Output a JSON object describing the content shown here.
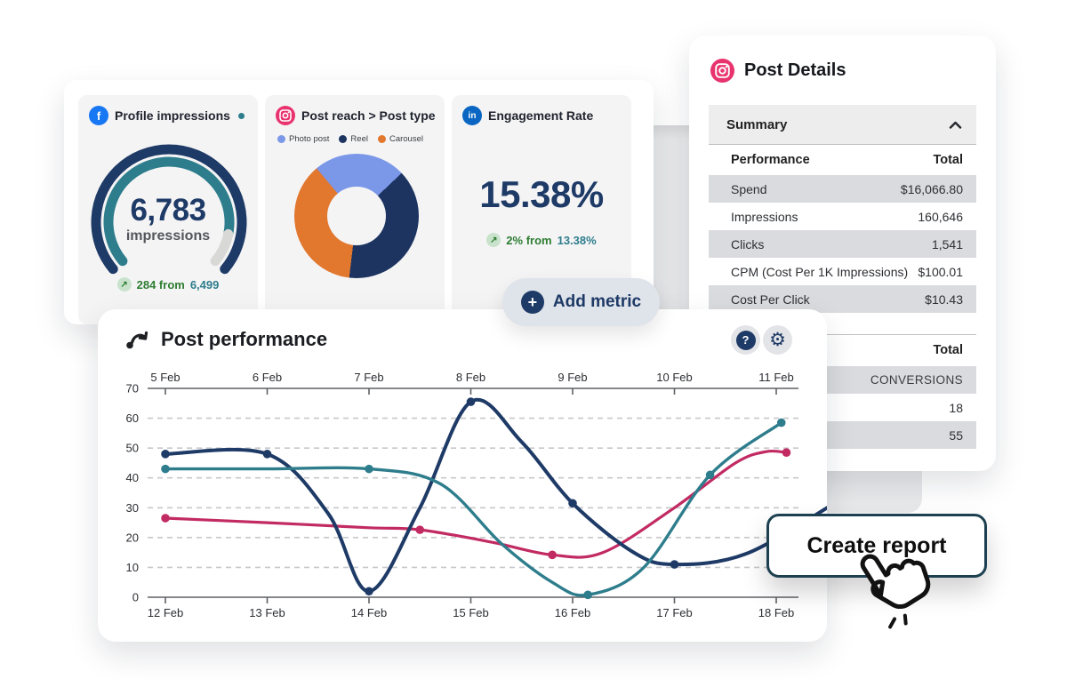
{
  "colors": {
    "navy": "#1e3a66",
    "teal": "#2e7d8c",
    "green": "#2e7d32",
    "pink_line": "#c22a62",
    "facebook_blue": "#1877f2",
    "linkedin_blue": "#0a66c2",
    "instagram_pink": "#e8336f",
    "donut_blue": "#7b97e8",
    "donut_navy": "#1d3461",
    "donut_orange": "#e2772e",
    "tile_bg": "#f4f4f5",
    "row_gray": "#d9dbde"
  },
  "icons": {
    "facebook_glyph": "f",
    "linkedin_glyph": "in",
    "up_arrow": "↗",
    "help_glyph": "?",
    "gear_glyph": "⚙",
    "plus_glyph": "+"
  },
  "metrics_card": {
    "tiles": [
      {
        "title": "Profile impressions",
        "value": "6,783",
        "unit": "impressions",
        "change_text": "284 from",
        "baseline": "6,499"
      },
      {
        "title": "Post reach > Post type",
        "legend": [
          {
            "label": "Photo post",
            "color": "#7b97e8"
          },
          {
            "label": "Reel",
            "color": "#1d3461"
          },
          {
            "label": "Carousel",
            "color": "#e2772e"
          }
        ]
      },
      {
        "title": "Engagement Rate",
        "value": "15.38%",
        "change_text": "2% from",
        "baseline": "13.38%"
      }
    ]
  },
  "add_metric": {
    "label": "Add metric"
  },
  "post_details": {
    "title": "Post Details",
    "section_label": "Summary",
    "performance_table": {
      "header": [
        "Performance",
        "Total"
      ],
      "rows": [
        [
          "Spend",
          "$16,066.80"
        ],
        [
          "Impressions",
          "160,646"
        ],
        [
          "Clicks",
          "1,541"
        ],
        [
          "CPM (Cost Per 1K Impressions)",
          "$100.01"
        ],
        [
          "Cost Per Click",
          "$10.43"
        ]
      ]
    },
    "conversions_table": {
      "header": "Total",
      "rows": [
        "CONVERSIONS",
        "18",
        "55"
      ]
    }
  },
  "post_performance": {
    "title": "Post performance"
  },
  "create_report": {
    "label": "Create report"
  },
  "chart_data": [
    {
      "type": "gauge",
      "title": "Profile impressions",
      "value": 6783,
      "unit": "impressions",
      "previous": 6499,
      "change": 284,
      "fill_fraction": 0.89,
      "colors": {
        "outer": "#1e3a66",
        "fill": "#2e7d8c",
        "rest": "#d8d8d6"
      }
    },
    {
      "type": "pie",
      "donut": true,
      "title": "Post reach > Post type",
      "categories": [
        "Photo post",
        "Reel",
        "Carousel"
      ],
      "values": [
        24,
        39,
        37
      ],
      "colors": [
        "#7b97e8",
        "#1d3461",
        "#e2772e"
      ],
      "start_angle_deg": 320,
      "legend_position": "top"
    },
    {
      "type": "line",
      "title": "Post performance",
      "x_top_labels": [
        "5 Feb",
        "6 Feb",
        "7 Feb",
        "8 Feb",
        "9 Feb",
        "10 Feb",
        "11 Feb"
      ],
      "x_bottom_labels": [
        "12 Feb",
        "13 Feb",
        "14 Feb",
        "15 Feb",
        "16 Feb",
        "17 Feb",
        "18 Feb"
      ],
      "y_ticks": [
        0,
        10,
        20,
        30,
        40,
        50,
        60,
        70
      ],
      "ylim": [
        0,
        70
      ],
      "grid": "dashed-horizontal",
      "series": [
        {
          "name": "series-pink",
          "color": "#c22a62",
          "width": 3.2,
          "points": [
            [
              0,
              26.5
            ],
            [
              1,
              25
            ],
            [
              2,
              23.3
            ],
            [
              2.5,
              22.6
            ],
            [
              3.2,
              18.5
            ],
            [
              3.8,
              14.2
            ],
            [
              4.3,
              15
            ],
            [
              5,
              30
            ],
            [
              5.6,
              45
            ],
            [
              5.9,
              48.8
            ],
            [
              6.1,
              48.5
            ]
          ],
          "markers": [
            [
              0,
              26.5
            ],
            [
              2.5,
              22.6
            ],
            [
              3.8,
              14.2
            ],
            [
              6.1,
              48.5
            ]
          ]
        },
        {
          "name": "series-navy",
          "color": "#1e3a66",
          "width": 4,
          "points": [
            [
              0,
              48
            ],
            [
              1,
              48
            ],
            [
              1.6,
              28
            ],
            [
              2,
              2
            ],
            [
              2.5,
              30
            ],
            [
              3,
              65.5
            ],
            [
              3.5,
              52
            ],
            [
              4,
              31.5
            ],
            [
              4.6,
              15
            ],
            [
              5,
              11
            ],
            [
              5.7,
              14.5
            ],
            [
              6.55,
              31
            ]
          ],
          "markers": [
            [
              0,
              48
            ],
            [
              1,
              48
            ],
            [
              2,
              2
            ],
            [
              3,
              65.5
            ],
            [
              4,
              31.5
            ],
            [
              5,
              11
            ]
          ]
        },
        {
          "name": "series-teal",
          "color": "#2e7d8c",
          "width": 3.4,
          "points": [
            [
              0,
              43
            ],
            [
              1,
              43
            ],
            [
              2,
              43
            ],
            [
              2.7,
              38
            ],
            [
              3.3,
              18
            ],
            [
              3.8,
              5
            ],
            [
              4.15,
              0.8
            ],
            [
              4.7,
              10
            ],
            [
              5.35,
              41
            ],
            [
              6.05,
              58.5
            ]
          ],
          "markers": [
            [
              0,
              43
            ],
            [
              2,
              43
            ],
            [
              4.15,
              0.8
            ],
            [
              5.35,
              41
            ],
            [
              6.05,
              58.5
            ]
          ]
        }
      ]
    }
  ]
}
